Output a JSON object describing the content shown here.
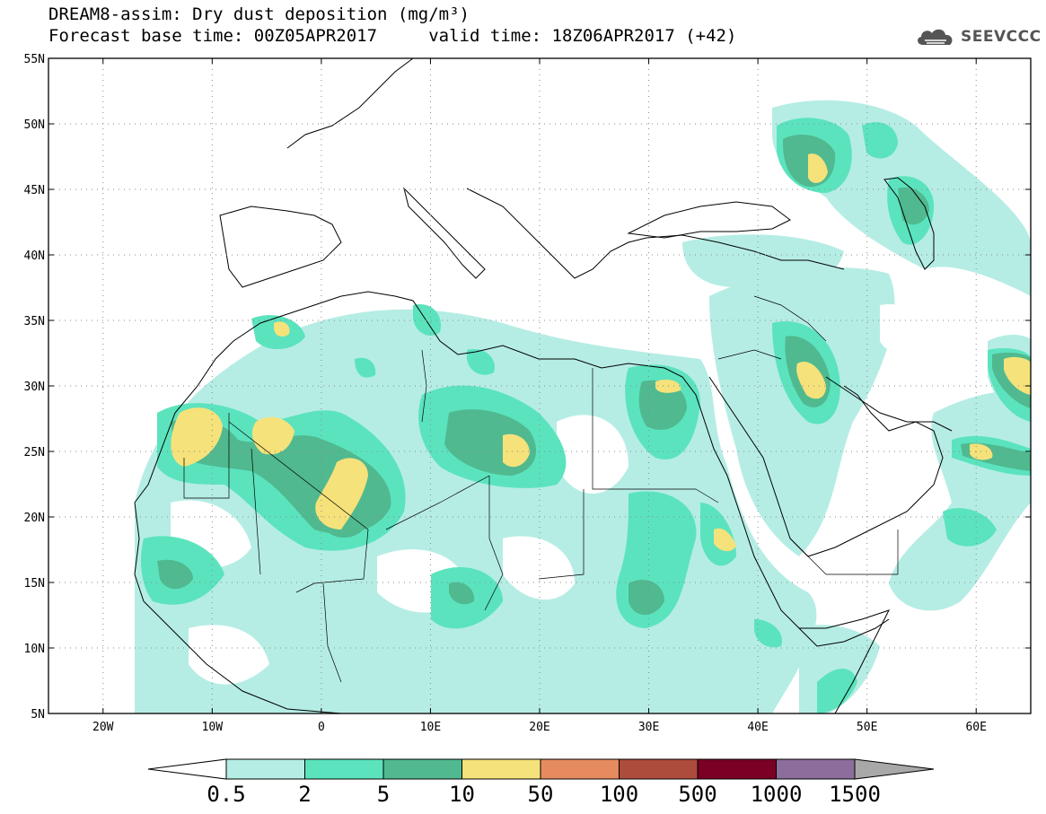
{
  "header": {
    "title_line1": "DREAM8-assim: Dry dust deposition (mg/m³)",
    "title_line2": "Forecast base time: 00Z05APR2017     valid time: 18Z06APR2017 (+42)"
  },
  "logo": {
    "text": "SEEVCCC",
    "icon": "cloud-icon"
  },
  "map": {
    "lon_range": [
      -25,
      65
    ],
    "lat_range": [
      5,
      55
    ],
    "lat_ticks": [
      {
        "value": 55,
        "label": "55N"
      },
      {
        "value": 50,
        "label": "50N"
      },
      {
        "value": 45,
        "label": "45N"
      },
      {
        "value": 40,
        "label": "40N"
      },
      {
        "value": 35,
        "label": "35N"
      },
      {
        "value": 30,
        "label": "30N"
      },
      {
        "value": 25,
        "label": "25N"
      },
      {
        "value": 20,
        "label": "20N"
      },
      {
        "value": 15,
        "label": "15N"
      },
      {
        "value": 10,
        "label": "10N"
      },
      {
        "value": 5,
        "label": "5N"
      }
    ],
    "lon_ticks": [
      {
        "value": -20,
        "label": "20W"
      },
      {
        "value": -10,
        "label": "10W"
      },
      {
        "value": 0,
        "label": "0"
      },
      {
        "value": 10,
        "label": "10E"
      },
      {
        "value": 20,
        "label": "20E"
      },
      {
        "value": 30,
        "label": "30E"
      },
      {
        "value": 40,
        "label": "40E"
      },
      {
        "value": 50,
        "label": "50E"
      },
      {
        "value": 60,
        "label": "60E"
      }
    ],
    "grid": "dotted"
  },
  "colorbar": {
    "colors": [
      "#ffffff",
      "#b5ede4",
      "#5be3be",
      "#50b98f",
      "#f5e27a",
      "#e68b5f",
      "#ad4b3d",
      "#7a0025",
      "#8c6d9c",
      "#a8a8a8"
    ],
    "labels": [
      "0.5",
      "2",
      "5",
      "10",
      "50",
      "100",
      "500",
      "1000",
      "1500"
    ]
  }
}
